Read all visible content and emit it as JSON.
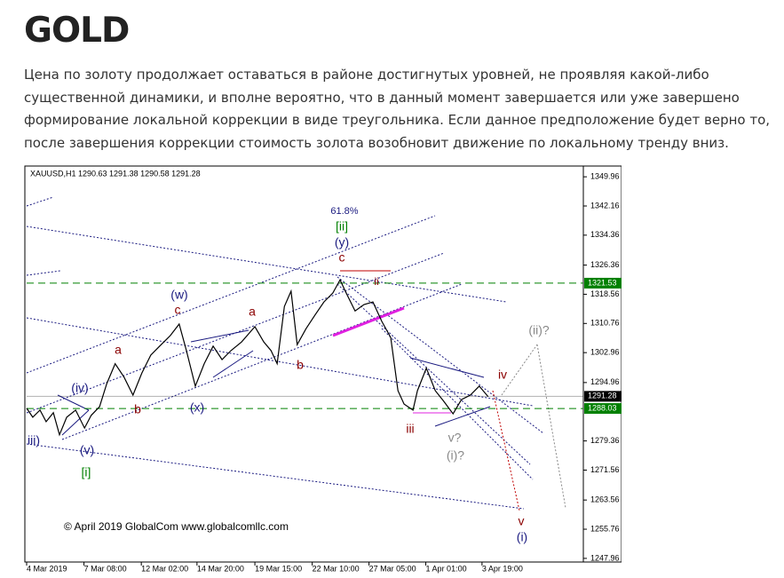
{
  "header": {
    "title": "GOLD"
  },
  "paragraph": "Цена по золоту продолжает оставаться в районе достигнутых уровней, не проявляя какой-либо существенной динамики, и вполне вероятно, что в данный момент завершается или уже завершено формирование локальной коррекции в виде треугольника. Если данное предположение будет верно то, после завершения коррекции стоимость золота возобновит движение по локальному тренду вниз.",
  "chart_data": {
    "type": "line",
    "header": "XAUUSD,H1  1290.63 1291.38 1290.58 1291.28",
    "footer": "© April 2019 GlobalCom www.globalcomllc.com",
    "x": [
      0,
      1.1,
      2.4,
      3.5,
      4.8,
      5.9,
      7.2,
      8.8,
      10.4,
      11.6,
      13.1,
      14.4,
      15.9,
      17.5,
      19.1,
      20.7,
      22.3,
      23.9,
      25.8,
      27.4,
      28.7,
      30.3,
      31.9,
      33.5,
      35.1,
      36.7,
      38.6,
      41.0,
      42.6,
      43.9,
      45.0,
      46.3,
      47.5,
      48.6,
      50.2,
      51.8,
      53.4,
      55.0,
      56.3,
      57.4,
      59.0,
      60.6,
      62.2,
      63.8,
      65.4,
      66.7,
      67.8,
      69.4,
      70.2,
      71.8,
      73.4,
      74.9,
      76.6,
      78.1,
      79.7,
      81.3,
      82.9
    ],
    "series": [
      {
        "name": "XAUUSD",
        "color": "#000000",
        "values": [
          1288.1,
          1285.7,
          1287.6,
          1284.5,
          1286.9,
          1281.0,
          1285.7,
          1287.6,
          1282.8,
          1286.2,
          1288.5,
          1294.7,
          1300.0,
          1296.4,
          1291.6,
          1297.5,
          1302.3,
          1304.7,
          1307.5,
          1310.6,
          1303.5,
          1294.0,
          1300.0,
          1304.7,
          1301.1,
          1303.5,
          1305.8,
          1309.9,
          1305.8,
          1303.5,
          1300.0,
          1315.3,
          1319.4,
          1305.1,
          1309.4,
          1313.0,
          1316.5,
          1318.9,
          1322.4,
          1318.9,
          1314.1,
          1315.8,
          1316.5,
          1311.3,
          1307.0,
          1292.8,
          1289.2,
          1287.6,
          1292.8,
          1298.8,
          1292.8,
          1290.0,
          1286.6,
          1290.4,
          1291.6,
          1294.0,
          1291.2
        ]
      }
    ],
    "xlim": [
      0,
      100
    ],
    "xticks": [
      {
        "value": 0,
        "label": "4 Mar 2019"
      },
      {
        "value": 10.3,
        "label": "7 Mar 08:00"
      },
      {
        "value": 20.6,
        "label": "12 Mar 02:00"
      },
      {
        "value": 30.6,
        "label": "14 Mar 20:00"
      },
      {
        "value": 41,
        "label": "19 Mar 15:00"
      },
      {
        "value": 51.3,
        "label": "22 Mar 10:00"
      },
      {
        "value": 61.5,
        "label": "27 Mar 05:00"
      },
      {
        "value": 71.7,
        "label": "1 Apr 01:00"
      },
      {
        "value": 81.8,
        "label": "3 Apr 19:00"
      }
    ],
    "ylim": [
      1247.7,
      1352.6
    ],
    "yticks": [
      1247.96,
      1255.76,
      1263.56,
      1271.56,
      1279.36,
      1294.96,
      1302.96,
      1310.76,
      1318.56,
      1326.36,
      1334.36,
      1342.16,
      1349.96
    ],
    "levels": [
      {
        "value": 1321.53,
        "color": "#008000"
      },
      {
        "value": 1291.28,
        "color": "#000000"
      },
      {
        "value": 1288.03,
        "color": "#008000"
      }
    ],
    "annotations": [
      "61.8%",
      "[ii]",
      "(y)",
      "c",
      "ii",
      "(w)",
      "c",
      "a",
      "a",
      "b",
      "b",
      "(x)",
      "(iv)",
      "iii)",
      "(v)",
      "[i]",
      "iii",
      "v?",
      "(i)?",
      "iv",
      "(ii)?",
      "v",
      "(i)"
    ]
  }
}
